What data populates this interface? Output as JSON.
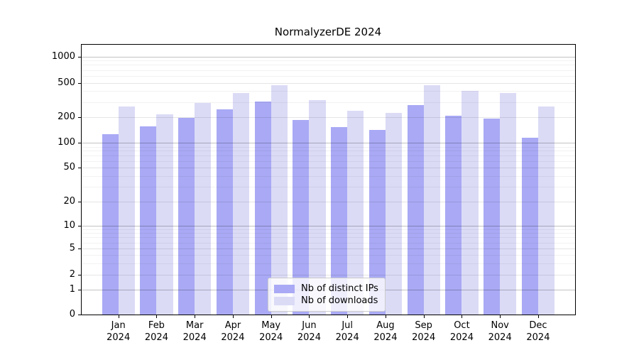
{
  "chart_data": {
    "type": "bar",
    "title": "NormalyzerDE 2024",
    "categories": [
      "Jan",
      "Feb",
      "Mar",
      "Apr",
      "May",
      "Jun",
      "Jul",
      "Aug",
      "Sep",
      "Oct",
      "Nov",
      "Dec"
    ],
    "year_label": "2024",
    "series": [
      {
        "name": "Nb of distinct IPs",
        "color": "#a9a9f5",
        "values": [
          127,
          157,
          197,
          246,
          305,
          184,
          152,
          142,
          277,
          206,
          193,
          115
        ]
      },
      {
        "name": "Nb of downloads",
        "color": "#dbdbf6",
        "values": [
          266,
          216,
          290,
          380,
          474,
          312,
          235,
          225,
          470,
          401,
          380,
          265
        ]
      }
    ],
    "y_axis": {
      "scale": "symlog",
      "ticks": [
        0,
        1,
        2,
        5,
        10,
        20,
        50,
        100,
        200,
        500,
        1000
      ]
    },
    "grid": "on",
    "legend_position": "lower center",
    "colors": {
      "major_gridline": "rgba(0,0,0,0.24)",
      "mid_gridline": "rgba(0,0,0,0.10)",
      "minor_gridline": "rgba(0,0,0,0.05)"
    }
  }
}
